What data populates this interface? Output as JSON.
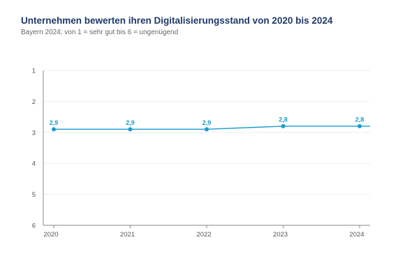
{
  "colors": {
    "line": "#1a9bcf",
    "title": "#1f3a68",
    "axis": "#888888",
    "grid": "#eeeeee"
  },
  "chart_data": {
    "type": "line",
    "title": "Unternehmen bewerten ihren Digitalisierungsstand von 2020 bis 2024",
    "subtitle": "Bayern 2024; von 1 = sehr gut bis 6 = ungenügend",
    "xlabel": "",
    "ylabel": "",
    "x": [
      "2020",
      "2021",
      "2022",
      "2023",
      "2024"
    ],
    "series": [
      {
        "values": [
          2.9,
          2.9,
          2.9,
          2.8,
          2.8
        ],
        "labels": [
          "2,9",
          "2,9",
          "2,9",
          "2,8",
          "2,8"
        ]
      }
    ],
    "ylim": [
      1,
      6
    ],
    "y_inverted": true,
    "yticks": [
      "1",
      "2",
      "3",
      "4",
      "5",
      "6"
    ],
    "grid": true,
    "legend": "none"
  }
}
